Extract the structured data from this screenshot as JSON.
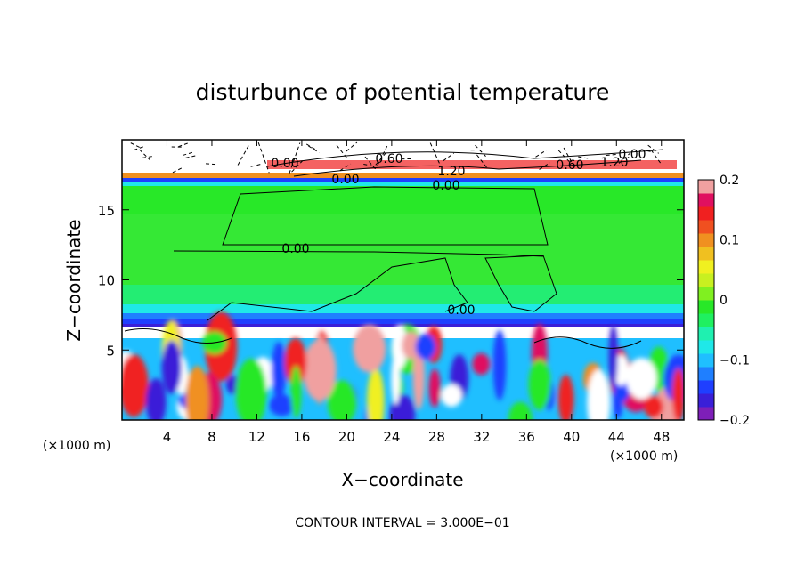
{
  "chart_data": {
    "type": "heatmap",
    "title": "disturbunce of potential temperature",
    "xlabel": "X−coordinate",
    "ylabel": "Z−coordinate",
    "x_unit_left": "(×1000 m)",
    "x_unit_right": "(×1000 m)",
    "xlim": [
      0,
      50
    ],
    "ylim": [
      0,
      20
    ],
    "x_ticks": [
      4,
      8,
      12,
      16,
      20,
      24,
      28,
      32,
      36,
      40,
      44,
      48
    ],
    "y_ticks": [
      5,
      10,
      15
    ],
    "contour_interval_text": "CONTOUR INTERVAL = 3.000E−01",
    "colorbar": {
      "min": -0.2,
      "max": 0.2,
      "ticks": [
        "0.2",
        "0.1",
        "0",
        "−0.1",
        "−0.2"
      ],
      "colors": [
        "#7e1fb8",
        "#3a1fd8",
        "#1f3fff",
        "#1f7fff",
        "#1fbfff",
        "#1fe8e8",
        "#1ff0b0",
        "#1ff060",
        "#28e828",
        "#80f020",
        "#c8f020",
        "#f0f020",
        "#f0c020",
        "#f09020",
        "#f05020",
        "#f02020",
        "#e01060",
        "#f0a0a0"
      ]
    },
    "contour_labels": [
      "0.00",
      "0.60",
      "1.20",
      "0.00",
      "0.00",
      "0.60",
      "1.20",
      "0.00",
      "0.00",
      "0.00"
    ]
  }
}
